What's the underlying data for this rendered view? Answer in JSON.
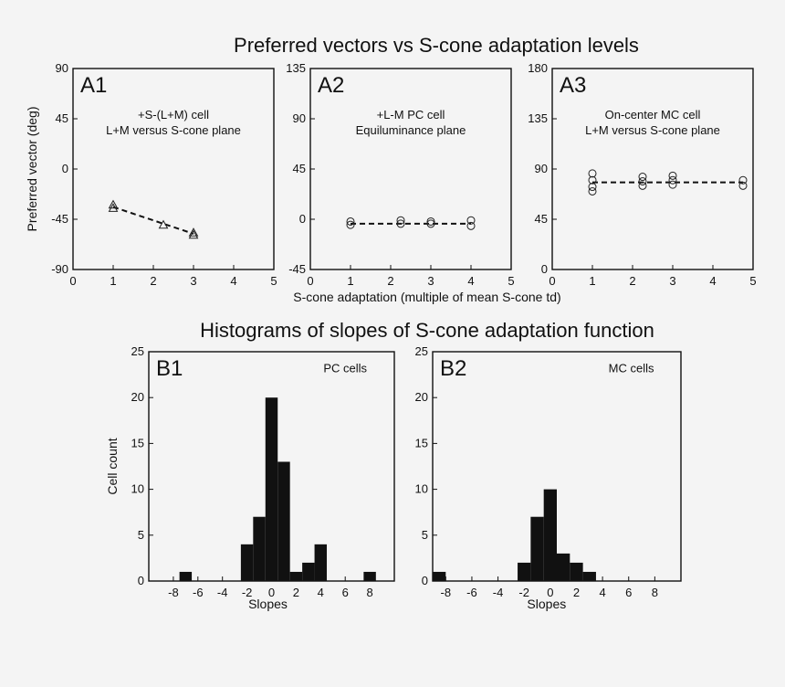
{
  "section_a_title": "Preferred vectors vs S-cone adaptation levels",
  "section_b_title": "Histograms of slopes of S-cone adaptation function",
  "shared_xlabel": "S-cone adaptation (multiple of mean S-cone td)",
  "chart_data": [
    {
      "id": "A1",
      "type": "scatter",
      "panel_label": "A1",
      "annotation": [
        "+S-(L+M) cell",
        "L+M versus S-cone plane"
      ],
      "ylabel": "Preferred vector (deg)",
      "xlim": [
        0,
        5
      ],
      "ylim": [
        -90,
        90
      ],
      "xticks": [
        0,
        1,
        2,
        3,
        4,
        5
      ],
      "yticks": [
        -90,
        -45,
        0,
        45,
        90
      ],
      "marker": "triangle",
      "points": [
        [
          1,
          -32
        ],
        [
          1,
          -35
        ],
        [
          2.25,
          -50
        ],
        [
          3,
          -57
        ],
        [
          3,
          -59
        ]
      ],
      "fit": [
        [
          1,
          -34
        ],
        [
          3,
          -58
        ]
      ]
    },
    {
      "id": "A2",
      "type": "scatter",
      "panel_label": "A2",
      "annotation": [
        "+L-M PC cell",
        "Equiluminance plane"
      ],
      "xlim": [
        0,
        5
      ],
      "ylim": [
        -45,
        135
      ],
      "xticks": [
        0,
        1,
        2,
        3,
        4,
        5
      ],
      "yticks": [
        -45,
        0,
        45,
        90,
        135
      ],
      "marker": "circle",
      "points": [
        [
          1,
          -2
        ],
        [
          1,
          -5
        ],
        [
          2.25,
          -1
        ],
        [
          2.25,
          -4
        ],
        [
          3,
          -2
        ],
        [
          3,
          -4
        ],
        [
          4,
          -1
        ],
        [
          4,
          -6
        ]
      ],
      "fit": [
        [
          1,
          -4
        ],
        [
          4,
          -4
        ]
      ]
    },
    {
      "id": "A3",
      "type": "scatter",
      "panel_label": "A3",
      "annotation": [
        "On-center MC cell",
        "L+M versus S-cone plane"
      ],
      "xlim": [
        0,
        5
      ],
      "ylim": [
        0,
        180
      ],
      "xticks": [
        0,
        1,
        2,
        3,
        4,
        5
      ],
      "yticks": [
        0,
        45,
        90,
        135,
        180
      ],
      "marker": "circle",
      "points": [
        [
          1,
          86
        ],
        [
          1,
          80
        ],
        [
          1,
          74
        ],
        [
          1,
          70
        ],
        [
          2.25,
          83
        ],
        [
          2.25,
          79
        ],
        [
          2.25,
          75
        ],
        [
          3,
          84
        ],
        [
          3,
          80
        ],
        [
          3,
          76
        ],
        [
          4.75,
          80
        ],
        [
          4.75,
          75
        ]
      ],
      "fit": [
        [
          1,
          78
        ],
        [
          4.75,
          78
        ]
      ]
    },
    {
      "id": "B1",
      "type": "bar",
      "panel_label": "B1",
      "annotation": [
        "PC cells"
      ],
      "ylabel": "Cell count",
      "xlabel": "Slopes",
      "xlim": [
        -10,
        10
      ],
      "ylim": [
        0,
        25
      ],
      "xticks": [
        -8,
        -6,
        -4,
        -2,
        0,
        2,
        4,
        6,
        8
      ],
      "yticks": [
        0,
        5,
        10,
        15,
        20,
        25
      ],
      "bin_width": 1,
      "bins": [
        [
          -7,
          1
        ],
        [
          -2,
          4
        ],
        [
          -1,
          7
        ],
        [
          0,
          20
        ],
        [
          1,
          13
        ],
        [
          2,
          1
        ],
        [
          3,
          2
        ],
        [
          4,
          4
        ],
        [
          8,
          1
        ]
      ]
    },
    {
      "id": "B2",
      "type": "bar",
      "panel_label": "B2",
      "annotation": [
        "MC cells"
      ],
      "xlabel": "Slopes",
      "xlim": [
        -9,
        10
      ],
      "ylim": [
        0,
        25
      ],
      "xticks": [
        -8,
        -6,
        -4,
        -2,
        0,
        2,
        4,
        6,
        8
      ],
      "yticks": [
        0,
        5,
        10,
        15,
        20,
        25
      ],
      "bin_width": 1,
      "bins": [
        [
          -8.5,
          1
        ],
        [
          -2,
          2
        ],
        [
          -1,
          7
        ],
        [
          0,
          10
        ],
        [
          1,
          3
        ],
        [
          2,
          2
        ],
        [
          3,
          1
        ]
      ]
    }
  ]
}
